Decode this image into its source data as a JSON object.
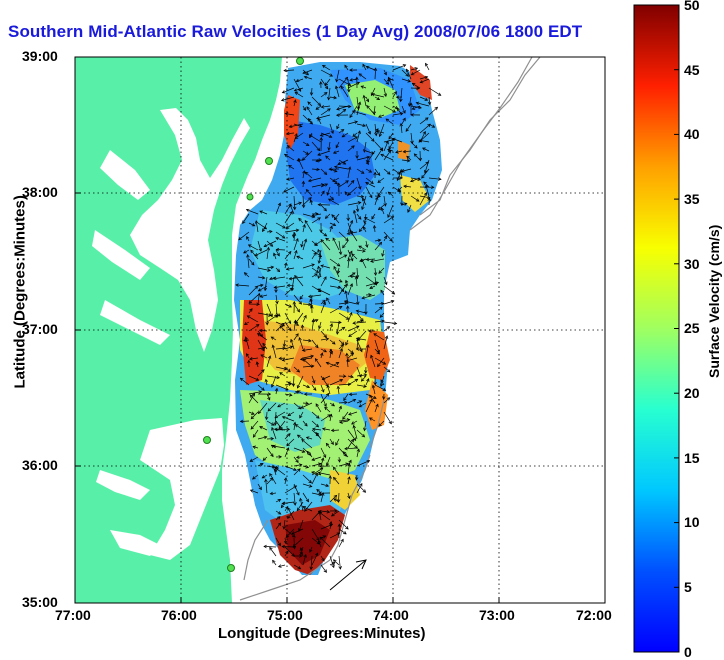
{
  "title": "Southern Mid-Atlantic Raw Velocities (1 Day Avg) 2008/07/06 1800 EDT",
  "x_axis": {
    "label": "Longitude (Degrees:Minutes)",
    "ticks": [
      "77:00",
      "76:00",
      "75:00",
      "74:00",
      "73:00",
      "72:00"
    ]
  },
  "y_axis": {
    "label": "Latitude (Degrees:Minutes)",
    "ticks": [
      "39:00",
      "38:00",
      "37:00",
      "36:00",
      "35:00"
    ]
  },
  "colorbar": {
    "label": "Surface Velocity (cm/s)",
    "ticks": [
      "50",
      "45",
      "40",
      "35",
      "30",
      "25",
      "20",
      "15",
      "10",
      "5",
      "0"
    ],
    "min": 0,
    "max": 50,
    "colormap": "jet"
  },
  "map": {
    "lon_range": [
      -77,
      -72
    ],
    "lat_range": [
      35,
      39
    ],
    "land_color": "#58f0a8",
    "water_color": "#ffffff",
    "grid": "dotted",
    "stations": 5
  }
}
